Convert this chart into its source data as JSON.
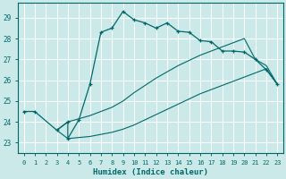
{
  "xlabel": "Humidex (Indice chaleur)",
  "bg_color": "#cce9e9",
  "grid_color": "#b8d8d8",
  "line_color": "#006868",
  "xlim": [
    -0.5,
    23.5
  ],
  "ylim": [
    22.5,
    29.7
  ],
  "yticks": [
    23,
    24,
    25,
    26,
    27,
    28,
    29
  ],
  "xticks": [
    0,
    1,
    2,
    3,
    4,
    5,
    6,
    7,
    8,
    9,
    10,
    11,
    12,
    13,
    14,
    15,
    16,
    17,
    18,
    19,
    20,
    21,
    22,
    23
  ],
  "line1_x": [
    0,
    1,
    3,
    4,
    4,
    5,
    6,
    7,
    8,
    9,
    10,
    11,
    12,
    13,
    14,
    15,
    16,
    17,
    18,
    19,
    20,
    21,
    22,
    23
  ],
  "line1_y": [
    24.5,
    24.5,
    23.6,
    24.0,
    23.2,
    24.1,
    25.8,
    28.3,
    28.5,
    29.3,
    28.9,
    28.75,
    28.5,
    28.75,
    28.35,
    28.3,
    27.9,
    27.85,
    27.4,
    27.4,
    27.35,
    27.0,
    26.5,
    25.8
  ],
  "line2_x": [
    3,
    4,
    5,
    6,
    7,
    8,
    9,
    10,
    11,
    12,
    13,
    14,
    15,
    16,
    17,
    18,
    19,
    20,
    21,
    22,
    23
  ],
  "line2_y": [
    23.6,
    24.0,
    24.15,
    24.3,
    24.5,
    24.7,
    25.0,
    25.4,
    25.75,
    26.1,
    26.4,
    26.7,
    26.95,
    27.2,
    27.4,
    27.6,
    27.8,
    28.0,
    27.0,
    26.7,
    25.8
  ],
  "line3_x": [
    3,
    4,
    5,
    6,
    7,
    8,
    9,
    10,
    11,
    12,
    13,
    14,
    15,
    16,
    17,
    18,
    19,
    20,
    21,
    22,
    23
  ],
  "line3_y": [
    23.6,
    23.2,
    23.25,
    23.3,
    23.4,
    23.5,
    23.65,
    23.85,
    24.1,
    24.35,
    24.6,
    24.85,
    25.1,
    25.35,
    25.55,
    25.75,
    25.95,
    26.15,
    26.35,
    26.55,
    25.8
  ]
}
